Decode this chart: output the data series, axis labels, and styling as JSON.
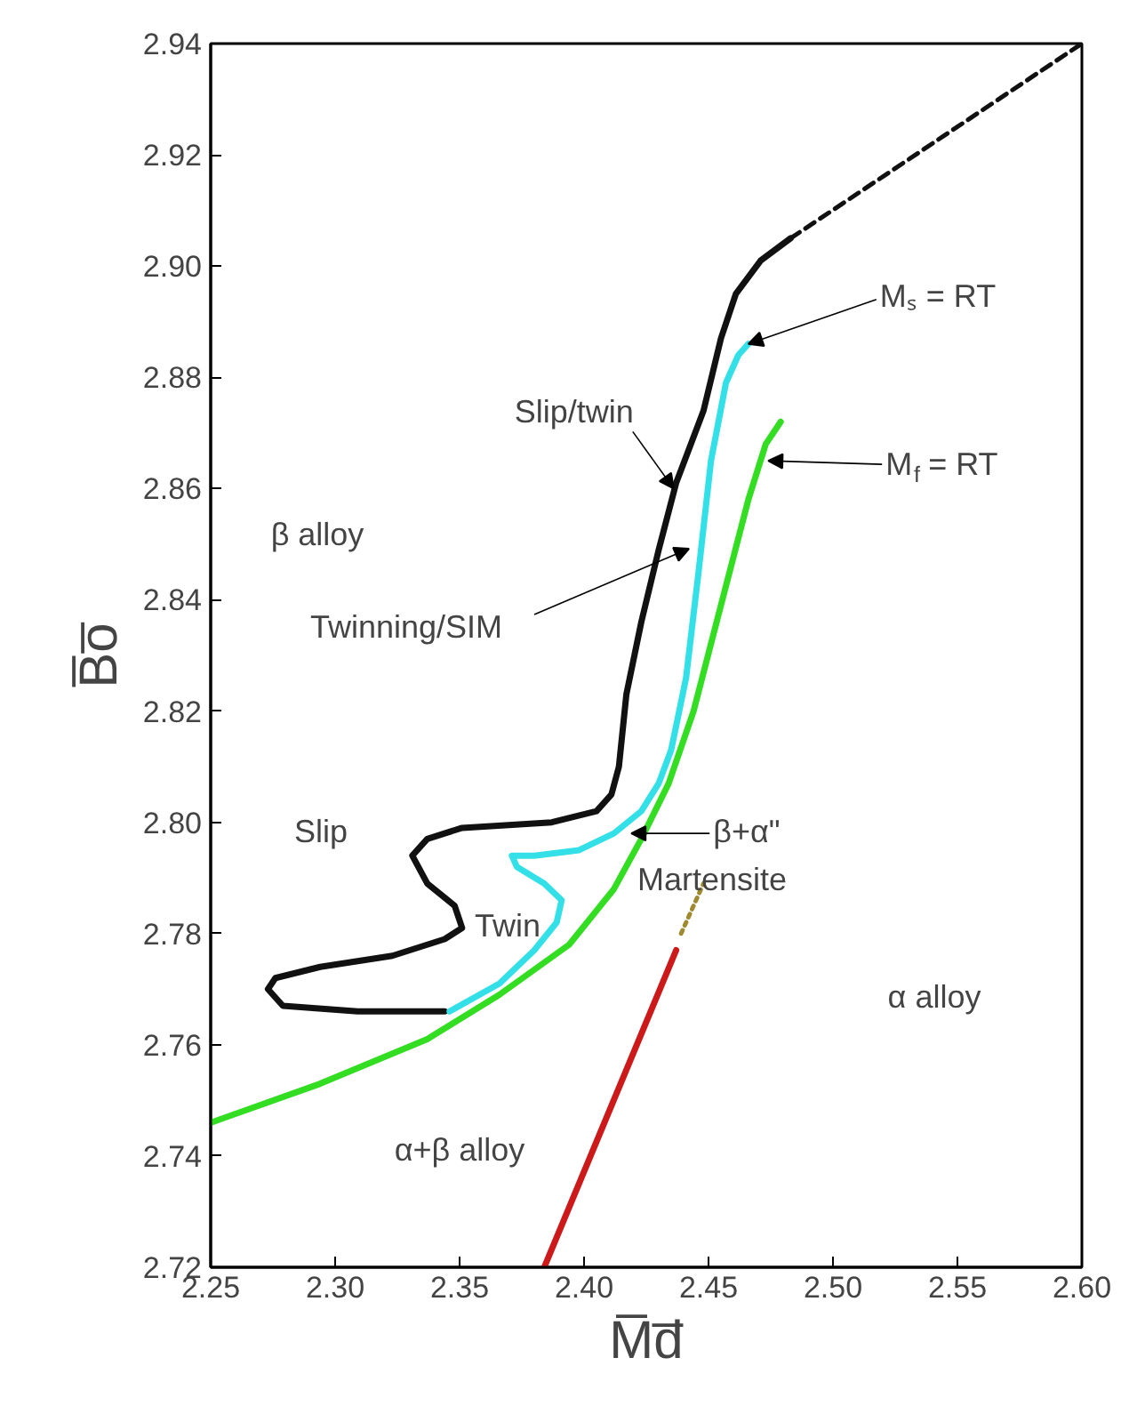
{
  "chart_data": {
    "type": "line",
    "xlabel": "M̅d̅",
    "ylabel": "B̅o̅",
    "grid": false,
    "xlim": [
      2.25,
      2.6
    ],
    "ylim": [
      2.72,
      2.94
    ],
    "xticks": [
      {
        "value": 2.25,
        "label": "2.25"
      },
      {
        "value": 2.3,
        "label": "2.30"
      },
      {
        "value": 2.35,
        "label": "2.35"
      },
      {
        "value": 2.4,
        "label": "2.40"
      },
      {
        "value": 2.45,
        "label": "2.45"
      },
      {
        "value": 2.5,
        "label": "2.50"
      },
      {
        "value": 2.55,
        "label": "2.55"
      },
      {
        "value": 2.6,
        "label": "2.60"
      }
    ],
    "yticks": [
      {
        "value": 2.72,
        "label": "2.72"
      },
      {
        "value": 2.74,
        "label": "2.74"
      },
      {
        "value": 2.76,
        "label": "2.76"
      },
      {
        "value": 2.78,
        "label": "2.78"
      },
      {
        "value": 2.8,
        "label": "2.80"
      },
      {
        "value": 2.82,
        "label": "2.82"
      },
      {
        "value": 2.84,
        "label": "2.84"
      },
      {
        "value": 2.86,
        "label": "2.86"
      },
      {
        "value": 2.88,
        "label": "2.88"
      },
      {
        "value": 2.9,
        "label": "2.90"
      },
      {
        "value": 2.92,
        "label": "2.92"
      },
      {
        "value": 2.94,
        "label": "2.94"
      }
    ],
    "series": [
      {
        "color": "#111111",
        "line_style": "solid",
        "x": [
          2.483,
          2.471,
          2.461,
          2.455,
          2.448,
          2.437,
          2.43,
          2.423,
          2.417,
          2.414,
          2.411,
          2.405,
          2.387,
          2.351,
          2.337,
          2.331,
          2.337,
          2.348,
          2.351,
          2.344,
          2.323,
          2.294,
          2.276,
          2.273,
          2.279,
          2.309,
          2.344
        ],
        "values": [
          2.905,
          2.901,
          2.895,
          2.887,
          2.874,
          2.861,
          2.849,
          2.836,
          2.823,
          2.81,
          2.805,
          2.802,
          2.8,
          2.799,
          2.797,
          2.794,
          2.789,
          2.785,
          2.781,
          2.779,
          2.776,
          2.774,
          2.772,
          2.77,
          2.767,
          2.766,
          2.766
        ]
      },
      {
        "color": "#111111",
        "line_style": "dashed",
        "x": [
          2.483,
          2.6
        ],
        "values": [
          2.905,
          2.94
        ]
      },
      {
        "color": "#33e0e8",
        "line_style": "solid",
        "x": [
          2.346,
          2.366,
          2.38,
          2.389,
          2.391,
          2.384,
          2.373,
          2.371,
          2.38,
          2.398,
          2.412,
          2.423,
          2.43,
          2.435,
          2.441,
          2.446,
          2.451,
          2.457,
          2.462,
          2.466
        ],
        "values": [
          2.766,
          2.771,
          2.777,
          2.782,
          2.786,
          2.789,
          2.792,
          2.794,
          2.794,
          2.795,
          2.798,
          2.802,
          2.807,
          2.813,
          2.826,
          2.845,
          2.865,
          2.879,
          2.884,
          2.886
        ]
      },
      {
        "color": "#33dd22",
        "line_style": "solid",
        "x": [
          2.25,
          2.294,
          2.337,
          2.366,
          2.394,
          2.412,
          2.423,
          2.434,
          2.444,
          2.455,
          2.466,
          2.473,
          2.479
        ],
        "values": [
          2.746,
          2.753,
          2.761,
          2.769,
          2.778,
          2.788,
          2.797,
          2.807,
          2.82,
          2.839,
          2.858,
          2.868,
          2.872
        ]
      },
      {
        "color": "#cc1a1a",
        "line_style": "solid",
        "x": [
          2.384,
          2.437
        ],
        "values": [
          2.72,
          2.777
        ]
      },
      {
        "color": "#a08a30",
        "line_style": "dotted",
        "x": [
          2.439,
          2.448
        ],
        "values": [
          2.78,
          2.789
        ]
      }
    ],
    "annotations": [
      {
        "text": "Mₛ = RT",
        "x": 2.466,
        "y": 2.886
      },
      {
        "text": "M$_{f}$ = RT",
        "x": 2.474,
        "y": 2.865
      },
      {
        "text": "Slip/twin",
        "x": 2.436,
        "y": 2.86
      },
      "Twinning/SIM",
      {
        "text": "β+α\"",
        "x": 2.419,
        "y": 2.798
      },
      "β alloy",
      "Slip",
      "Twin",
      "Martensite",
      "α alloy",
      "α+β alloy"
    ]
  }
}
